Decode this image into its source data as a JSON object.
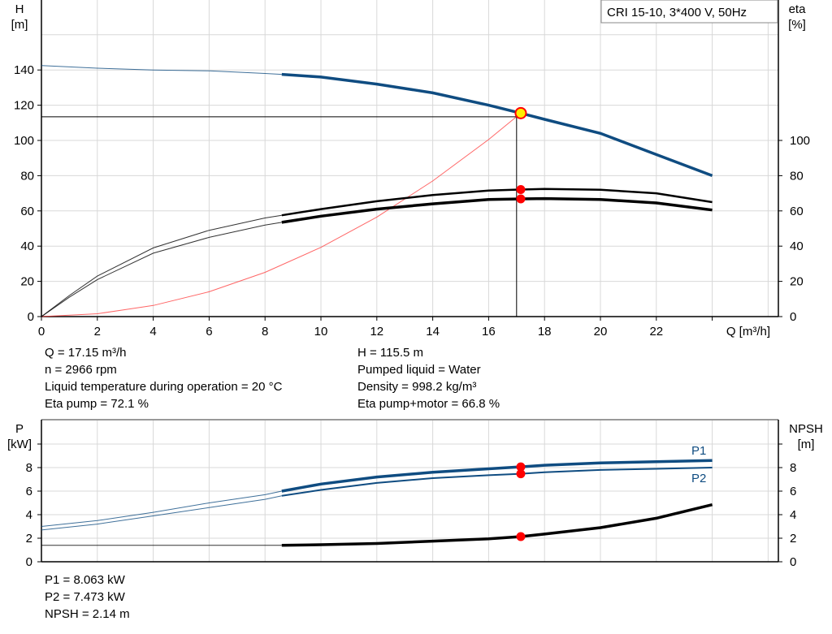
{
  "chart_data": [
    {
      "type": "line",
      "title": "CRI 15-10, 3*400 V, 50Hz",
      "xlabel": "Q [m³/h]",
      "ylabel": "H\n[m]",
      "ylabel_left": [
        "H",
        "[m]"
      ],
      "ylabel_right": [
        "eta",
        "[%]"
      ],
      "xlim": [
        0,
        26
      ],
      "ylim": [
        0,
        180
      ],
      "x_ticks": [
        "0",
        "2",
        "4",
        "6",
        "8",
        "10",
        "12",
        "14",
        "16",
        "18",
        "20",
        "22"
      ],
      "y_ticks_left": [
        "0",
        "20",
        "40",
        "60",
        "80",
        "100",
        "120",
        "140"
      ],
      "y_ticks_right": [
        "0",
        "20",
        "40",
        "60",
        "80",
        "100"
      ],
      "grid": true,
      "series": [
        {
          "id": "head",
          "color": "#0f4c81",
          "x": [
            0,
            2,
            4,
            6,
            8,
            8.6,
            10,
            12,
            14,
            16,
            17.15,
            18,
            20,
            22,
            24
          ],
          "y": [
            142.5,
            141,
            140,
            139.5,
            138,
            137.5,
            136,
            132,
            127,
            120,
            115.5,
            112,
            104,
            92,
            80
          ]
        },
        {
          "id": "eta-pump",
          "color": "#000000",
          "x": [
            0,
            1,
            2,
            4,
            6,
            8,
            8.6,
            10,
            12,
            14,
            16,
            17.15,
            18,
            20,
            22,
            24
          ],
          "y": [
            0,
            12,
            23,
            39,
            49,
            56,
            57.5,
            61,
            65.5,
            69,
            71.5,
            72.1,
            72.5,
            72,
            70,
            65
          ]
        },
        {
          "id": "eta-pump-motor",
          "color": "#000000",
          "x": [
            0,
            1,
            2,
            4,
            6,
            8,
            8.6,
            10,
            12,
            14,
            16,
            17.15,
            18,
            20,
            22,
            24
          ],
          "y": [
            0,
            11,
            21,
            36,
            45,
            52,
            53.5,
            57,
            61,
            64,
            66.5,
            66.8,
            67,
            66.5,
            64.5,
            60.5
          ]
        },
        {
          "id": "system-curve",
          "color": "#ff4040",
          "x": [
            0,
            2,
            4,
            6,
            8,
            10,
            12,
            14,
            16,
            17.15
          ],
          "y": [
            0,
            1.6,
            6.3,
            14.1,
            25.1,
            39.3,
            56.5,
            77,
            100.5,
            115.5
          ]
        }
      ],
      "operating_point": {
        "Q": 17.15,
        "H": 115.5,
        "eta_pump": 72.1,
        "eta_pump_motor": 66.8
      },
      "requested_point": {
        "Q": 17.0,
        "H": 113.4
      }
    },
    {
      "type": "line",
      "xlim": [
        0,
        26
      ],
      "ylim": [
        0,
        11
      ],
      "ylabel_left": [
        "P",
        "[kW]"
      ],
      "ylabel_right": [
        "NPSH",
        "[m]"
      ],
      "y_ticks_left": [
        "0",
        "2",
        "4",
        "6",
        "8"
      ],
      "y_ticks_right": [
        "0",
        "2",
        "4",
        "6",
        "8"
      ],
      "grid": true,
      "series": [
        {
          "id": "p1",
          "name": "P1",
          "color": "#0f4c81",
          "x": [
            0,
            2,
            4,
            6,
            8,
            8.6,
            10,
            12,
            14,
            16,
            17.15,
            18,
            20,
            22,
            24
          ],
          "y": [
            3.0,
            3.5,
            4.2,
            5.0,
            5.7,
            6.0,
            6.6,
            7.2,
            7.6,
            7.9,
            8.063,
            8.2,
            8.4,
            8.5,
            8.6
          ]
        },
        {
          "id": "p2",
          "name": "P2",
          "color": "#0f4c81",
          "x": [
            0,
            2,
            4,
            6,
            8,
            8.6,
            10,
            12,
            14,
            16,
            17.15,
            18,
            20,
            22,
            24
          ],
          "y": [
            2.7,
            3.2,
            3.9,
            4.6,
            5.3,
            5.6,
            6.1,
            6.7,
            7.1,
            7.35,
            7.473,
            7.6,
            7.8,
            7.9,
            8.0
          ]
        },
        {
          "id": "npsh",
          "color": "#000000",
          "x": [
            0,
            4,
            8,
            8.6,
            10,
            12,
            14,
            16,
            17.15,
            18,
            20,
            22,
            24
          ],
          "y": [
            1.4,
            1.4,
            1.4,
            1.4,
            1.45,
            1.55,
            1.75,
            1.95,
            2.14,
            2.35,
            2.9,
            3.7,
            4.85
          ]
        }
      ],
      "operating_point": {
        "Q": 17.15,
        "P1": 8.063,
        "P2": 7.473,
        "NPSH": 2.14
      }
    }
  ],
  "info_top_left": [
    "Q = 17.15 m³/h",
    "n = 2966 rpm",
    "Liquid temperature during operation = 20 °C",
    "Eta pump = 72.1 %"
  ],
  "info_top_right": [
    "H = 115.5 m",
    "Pumped liquid = Water",
    "Density = 998.2 kg/m³",
    "Eta pump+motor = 66.8 %"
  ],
  "info_bottom": [
    "P1 = 8.063 kW",
    "P2 = 7.473 kW",
    "NPSH = 2.14 m"
  ]
}
